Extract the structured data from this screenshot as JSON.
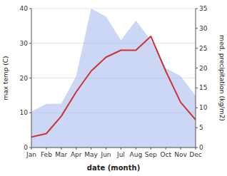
{
  "chart_data": {
    "type": "line",
    "x_label": "date (month)",
    "y_label": "max temp (C)",
    "y2_label": "med. precipitation (kg/m2)",
    "categories": [
      "Jan",
      "Feb",
      "Mar",
      "Apr",
      "May",
      "Jun",
      "Jul",
      "Aug",
      "Sep",
      "Oct",
      "Nov",
      "Dec"
    ],
    "series": [
      {
        "type": "line",
        "color": "#cc3333",
        "values": [
          3,
          4,
          9,
          16,
          22,
          26,
          28,
          28,
          32,
          22,
          13,
          8
        ]
      },
      {
        "type": "area",
        "color": "#aabbee",
        "axis": "y2",
        "values": [
          9,
          11,
          11,
          18,
          35,
          33,
          27,
          32,
          27,
          20,
          18,
          13
        ]
      }
    ],
    "ylim": [
      0,
      40
    ],
    "yticks": [
      0,
      10,
      20,
      30,
      40
    ],
    "y2lim": [
      0,
      35
    ],
    "y2ticks": [
      0,
      5,
      10,
      15,
      20,
      25,
      30,
      35
    ],
    "grid": true
  }
}
